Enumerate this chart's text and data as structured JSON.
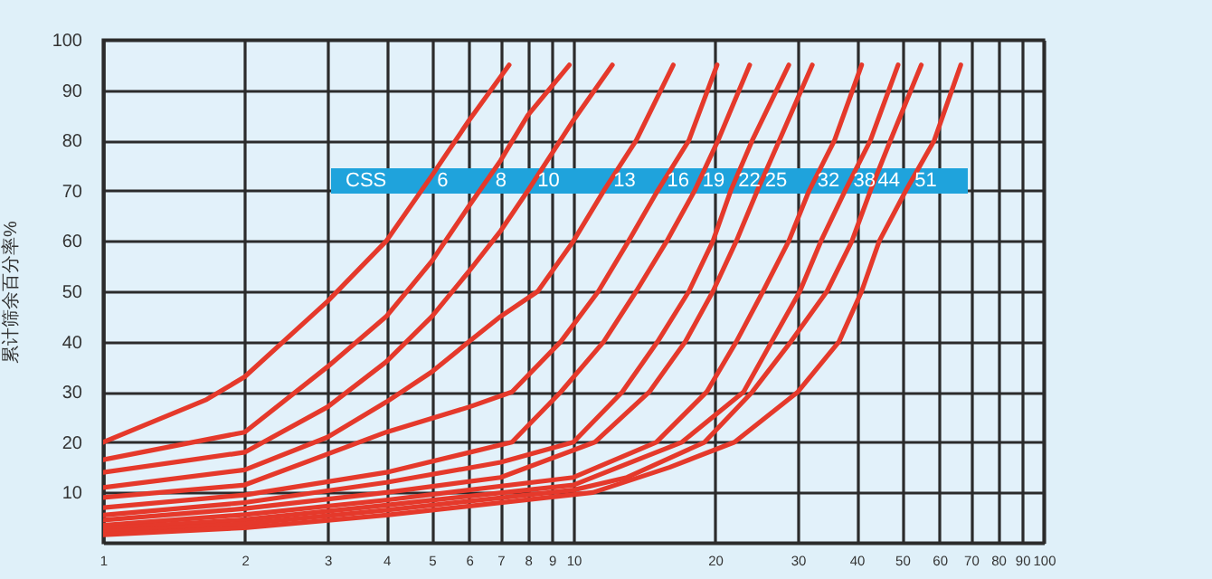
{
  "chart_data": {
    "type": "line",
    "ylabel": "累计筛余百分率%",
    "annotations": [
      "CSS"
    ],
    "xlim": [
      1,
      100
    ],
    "xticks": [
      1,
      2,
      3,
      4,
      5,
      6,
      7,
      8,
      9,
      10,
      20,
      30,
      40,
      50,
      60,
      70,
      80,
      90,
      100
    ],
    "ylim": [
      0,
      100
    ],
    "yticks": [
      10,
      20,
      30,
      40,
      50,
      60,
      70,
      80,
      90,
      100
    ],
    "log": "x",
    "grid": true,
    "legend": false,
    "marker": "none",
    "line_style": "solid",
    "series": [
      {
        "name": "6",
        "color": "#e5392b",
        "x": [
          1,
          1.66,
          2,
          3,
          4,
          5,
          6,
          7.3
        ],
        "values": [
          20,
          28.5,
          33,
          48,
          60,
          73,
          84,
          95
        ]
      },
      {
        "name": "8",
        "color": "#e5392b",
        "x": [
          1,
          2,
          3,
          4,
          5,
          6,
          7,
          8,
          9.8
        ],
        "values": [
          16.5,
          22,
          35,
          45,
          56,
          67,
          76,
          85,
          95
        ]
      },
      {
        "name": "10",
        "color": "#e5392b",
        "x": [
          1,
          2,
          3,
          4,
          5,
          6,
          7,
          8,
          10,
          12.1
        ],
        "values": [
          14,
          18,
          27,
          36,
          45,
          54,
          62,
          70,
          84,
          95
        ]
      },
      {
        "name": "13",
        "color": "#e5392b",
        "x": [
          1,
          2,
          3,
          4,
          5,
          6,
          7,
          8.4,
          10,
          11.6,
          13.6,
          16.3
        ],
        "values": [
          11,
          14.5,
          21,
          28,
          34,
          40,
          45,
          50,
          60,
          70,
          80,
          95
        ]
      },
      {
        "name": "16",
        "color": "#e5392b",
        "x": [
          1,
          2,
          4,
          6,
          7.4,
          9.4,
          11.3,
          13.1,
          15.1,
          17.6,
          20.2
        ],
        "values": [
          9,
          11.5,
          22,
          27,
          30,
          40,
          50,
          60,
          70,
          80,
          95
        ]
      },
      {
        "name": "19",
        "color": "#e5392b",
        "x": [
          1,
          2,
          4,
          7.4,
          9.4,
          11.6,
          13.6,
          15.8,
          18.1,
          20.3,
          23.7
        ],
        "values": [
          7,
          9.5,
          14,
          20,
          30,
          40,
          50,
          60,
          70,
          80,
          95
        ]
      },
      {
        "name": "22",
        "color": "#e5392b",
        "x": [
          1,
          2,
          4,
          7,
          10,
          12.7,
          15.1,
          17.6,
          19.8,
          21.6,
          24,
          28.7
        ],
        "values": [
          5.5,
          8,
          12,
          16,
          20,
          30,
          40,
          50,
          60,
          70,
          80,
          95
        ]
      },
      {
        "name": "25",
        "color": "#e5392b",
        "x": [
          1,
          2,
          4,
          7,
          11.1,
          14.5,
          17.3,
          19.8,
          22.2,
          24.6,
          27.4,
          32.2
        ],
        "values": [
          4.5,
          6.8,
          10,
          13,
          20,
          30,
          40,
          50,
          60,
          70,
          80,
          95
        ]
      },
      {
        "name": "32",
        "color": "#e5392b",
        "x": [
          1,
          2,
          4,
          10,
          15,
          19.2,
          22.2,
          25.3,
          28.7,
          31.7,
          35.9,
          41
        ],
        "values": [
          3.5,
          5.6,
          8.5,
          13,
          20,
          30,
          40,
          50,
          60,
          70,
          80,
          95
        ]
      },
      {
        "name": "38",
        "color": "#e5392b",
        "x": [
          1,
          2,
          4,
          10,
          17,
          23,
          26.4,
          30.3,
          33.6,
          37.8,
          42.8,
          49
        ],
        "values": [
          2.8,
          4.6,
          7.5,
          11.5,
          20,
          30,
          40,
          50,
          60,
          70,
          80,
          95
        ]
      },
      {
        "name": "44",
        "color": "#e5392b",
        "x": [
          1,
          2,
          4,
          10,
          13,
          19,
          24,
          29,
          34.6,
          39.1,
          42.8,
          47.2,
          54.9
        ],
        "values": [
          2.2,
          3.8,
          6.5,
          10.5,
          13,
          20,
          30,
          40,
          50,
          60,
          70,
          80,
          95
        ]
      },
      {
        "name": "51",
        "color": "#e5392b",
        "x": [
          1,
          2,
          4,
          11,
          16,
          22,
          30,
          36.7,
          41,
          44.7,
          50.9,
          58.5,
          66.6
        ],
        "values": [
          1.6,
          3,
          5.5,
          10,
          15,
          20,
          30,
          40,
          50,
          60,
          70,
          80,
          95
        ]
      }
    ]
  }
}
